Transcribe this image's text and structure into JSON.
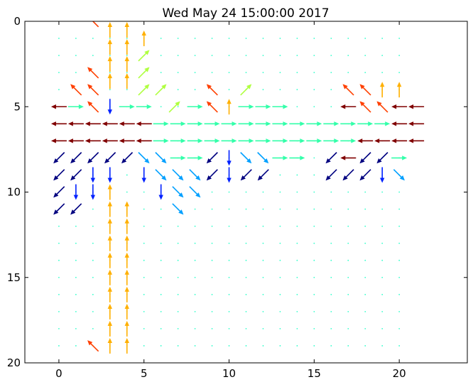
{
  "chart_data": {
    "type": "quiver",
    "title": "Wed May 24 15:00:00 2017",
    "xlabel": "",
    "ylabel": "",
    "xlim": [
      -2,
      24
    ],
    "ylim": [
      20,
      0
    ],
    "y_inverted": true,
    "xticks": [
      0,
      5,
      10,
      15,
      20
    ],
    "yticks": [
      0,
      5,
      10,
      15,
      20
    ],
    "grid": false,
    "colormap": "jet",
    "grid_points": {
      "x_start": 0,
      "x_end": 20,
      "x_step": 1,
      "y_start": 1,
      "y_end": 19,
      "y_step": 1,
      "dot_color": "#33ffcc"
    },
    "colors": {
      "dark_red": "#800000",
      "red_orange": "#ff4000",
      "orange": "#ffb000",
      "yellow_green": "#b0ff40",
      "aquamarine": "#33ffaa",
      "sky_blue": "#00a0ff",
      "blue": "#0020ff",
      "navy": "#000080"
    },
    "vectors": [
      {
        "x": 2,
        "y": 0,
        "dx": -1,
        "dy": -1,
        "color": "red_orange"
      },
      {
        "x": 3,
        "y": 0.5,
        "dx": 0,
        "dy": -1,
        "color": "orange"
      },
      {
        "x": 3,
        "y": 1.5,
        "dx": 0,
        "dy": -1,
        "color": "orange"
      },
      {
        "x": 3,
        "y": 2.5,
        "dx": 0,
        "dy": -1,
        "color": "orange"
      },
      {
        "x": 3,
        "y": 3.5,
        "dx": 0,
        "dy": -1,
        "color": "orange"
      },
      {
        "x": 4,
        "y": 0.5,
        "dx": 0,
        "dy": -1,
        "color": "orange"
      },
      {
        "x": 4,
        "y": 1.5,
        "dx": 0,
        "dy": -1,
        "color": "orange"
      },
      {
        "x": 4,
        "y": 2.5,
        "dx": 0,
        "dy": -1,
        "color": "orange"
      },
      {
        "x": 4,
        "y": 3.5,
        "dx": 0,
        "dy": -1,
        "color": "orange"
      },
      {
        "x": 5,
        "y": 1,
        "dx": 0,
        "dy": -1,
        "color": "orange"
      },
      {
        "x": 5,
        "y": 2,
        "dx": 1,
        "dy": -1,
        "color": "yellow_green"
      },
      {
        "x": 5,
        "y": 3,
        "dx": 1,
        "dy": -1,
        "color": "yellow_green"
      },
      {
        "x": 5,
        "y": 4,
        "dx": 1,
        "dy": -1,
        "color": "yellow_green"
      },
      {
        "x": 6,
        "y": 4,
        "dx": 1,
        "dy": -1,
        "color": "yellow_green"
      },
      {
        "x": 2,
        "y": 3,
        "dx": -1,
        "dy": -1,
        "color": "red_orange"
      },
      {
        "x": 1,
        "y": 4,
        "dx": -1,
        "dy": -1,
        "color": "red_orange"
      },
      {
        "x": 2,
        "y": 4,
        "dx": -1,
        "dy": -1,
        "color": "red_orange"
      },
      {
        "x": 9,
        "y": 4,
        "dx": -1,
        "dy": -1,
        "color": "red_orange"
      },
      {
        "x": 11,
        "y": 4,
        "dx": 1,
        "dy": -1,
        "color": "yellow_green"
      },
      {
        "x": 17,
        "y": 4,
        "dx": -1,
        "dy": -1,
        "color": "red_orange"
      },
      {
        "x": 18,
        "y": 4,
        "dx": -1,
        "dy": -1,
        "color": "red_orange"
      },
      {
        "x": 19,
        "y": 4,
        "dx": 0,
        "dy": -1,
        "color": "orange"
      },
      {
        "x": 20,
        "y": 4,
        "dx": 0,
        "dy": -1,
        "color": "orange"
      },
      {
        "x": 0,
        "y": 5,
        "dx": -1,
        "dy": 0,
        "color": "dark_red"
      },
      {
        "x": 1,
        "y": 5,
        "dx": 1,
        "dy": 0,
        "color": "aquamarine"
      },
      {
        "x": 2,
        "y": 5,
        "dx": -1,
        "dy": -1,
        "color": "red_orange"
      },
      {
        "x": 3,
        "y": 5,
        "dx": 0,
        "dy": 1,
        "color": "blue"
      },
      {
        "x": 4,
        "y": 5,
        "dx": 1,
        "dy": 0,
        "color": "aquamarine"
      },
      {
        "x": 5,
        "y": 5,
        "dx": 1,
        "dy": 0,
        "color": "aquamarine"
      },
      {
        "x": 6.8,
        "y": 5,
        "dx": 1,
        "dy": -1,
        "color": "yellow_green"
      },
      {
        "x": 8,
        "y": 5,
        "dx": 1,
        "dy": 0,
        "color": "aquamarine"
      },
      {
        "x": 9,
        "y": 5,
        "dx": -1,
        "dy": -1,
        "color": "red_orange"
      },
      {
        "x": 10,
        "y": 5,
        "dx": 0,
        "dy": -1,
        "color": "orange"
      },
      {
        "x": 11,
        "y": 5,
        "dx": 1,
        "dy": 0,
        "color": "aquamarine"
      },
      {
        "x": 12,
        "y": 5,
        "dx": 1,
        "dy": 0,
        "color": "aquamarine"
      },
      {
        "x": 13,
        "y": 5,
        "dx": 1,
        "dy": 0,
        "color": "aquamarine"
      },
      {
        "x": 17,
        "y": 5,
        "dx": -1,
        "dy": 0,
        "color": "dark_red"
      },
      {
        "x": 18,
        "y": 5,
        "dx": -1,
        "dy": -1,
        "color": "red_orange"
      },
      {
        "x": 19,
        "y": 5,
        "dx": -1,
        "dy": -1,
        "color": "red_orange"
      },
      {
        "x": 20,
        "y": 5,
        "dx": -1,
        "dy": 0,
        "color": "dark_red"
      },
      {
        "x": 21,
        "y": 5,
        "dx": -1,
        "dy": 0,
        "color": "dark_red"
      },
      {
        "x": 0,
        "y": 6,
        "dx": -1,
        "dy": 0,
        "color": "dark_red"
      },
      {
        "x": 1,
        "y": 6,
        "dx": -1,
        "dy": 0,
        "color": "dark_red"
      },
      {
        "x": 2,
        "y": 6,
        "dx": -1,
        "dy": 0,
        "color": "dark_red"
      },
      {
        "x": 3,
        "y": 6,
        "dx": -1,
        "dy": 0,
        "color": "dark_red"
      },
      {
        "x": 4,
        "y": 6,
        "dx": -1,
        "dy": 0,
        "color": "dark_red"
      },
      {
        "x": 5,
        "y": 6,
        "dx": -1,
        "dy": 0,
        "color": "dark_red"
      },
      {
        "x": 6,
        "y": 6,
        "dx": 1,
        "dy": 0,
        "color": "aquamarine"
      },
      {
        "x": 7,
        "y": 6,
        "dx": 1,
        "dy": 0,
        "color": "aquamarine"
      },
      {
        "x": 8,
        "y": 6,
        "dx": 1,
        "dy": 0,
        "color": "aquamarine"
      },
      {
        "x": 9,
        "y": 6,
        "dx": 1,
        "dy": 0,
        "color": "aquamarine"
      },
      {
        "x": 10,
        "y": 6,
        "dx": 1,
        "dy": 0,
        "color": "aquamarine"
      },
      {
        "x": 11,
        "y": 6,
        "dx": 1,
        "dy": 0,
        "color": "aquamarine"
      },
      {
        "x": 12,
        "y": 6,
        "dx": 1,
        "dy": 0,
        "color": "aquamarine"
      },
      {
        "x": 13,
        "y": 6,
        "dx": 1,
        "dy": 0,
        "color": "aquamarine"
      },
      {
        "x": 14,
        "y": 6,
        "dx": 1,
        "dy": 0,
        "color": "aquamarine"
      },
      {
        "x": 15,
        "y": 6,
        "dx": 1,
        "dy": 0,
        "color": "aquamarine"
      },
      {
        "x": 16,
        "y": 6,
        "dx": 1,
        "dy": 0,
        "color": "aquamarine"
      },
      {
        "x": 17,
        "y": 6,
        "dx": 1,
        "dy": 0,
        "color": "aquamarine"
      },
      {
        "x": 18,
        "y": 6,
        "dx": 1,
        "dy": 0,
        "color": "aquamarine"
      },
      {
        "x": 19,
        "y": 6,
        "dx": 1,
        "dy": 0,
        "color": "aquamarine"
      },
      {
        "x": 20,
        "y": 6,
        "dx": -1,
        "dy": 0,
        "color": "dark_red"
      },
      {
        "x": 21,
        "y": 6,
        "dx": -1,
        "dy": 0,
        "color": "dark_red"
      },
      {
        "x": 0,
        "y": 7,
        "dx": -1,
        "dy": 0,
        "color": "dark_red"
      },
      {
        "x": 1,
        "y": 7,
        "dx": -1,
        "dy": 0,
        "color": "dark_red"
      },
      {
        "x": 2,
        "y": 7,
        "dx": -1,
        "dy": 0,
        "color": "dark_red"
      },
      {
        "x": 3,
        "y": 7,
        "dx": -1,
        "dy": 0,
        "color": "dark_red"
      },
      {
        "x": 4,
        "y": 7,
        "dx": -1,
        "dy": 0,
        "color": "dark_red"
      },
      {
        "x": 5,
        "y": 7,
        "dx": -1,
        "dy": 0,
        "color": "dark_red"
      },
      {
        "x": 6,
        "y": 7,
        "dx": 1,
        "dy": 0,
        "color": "aquamarine"
      },
      {
        "x": 7,
        "y": 7,
        "dx": 1,
        "dy": 0,
        "color": "aquamarine"
      },
      {
        "x": 8,
        "y": 7,
        "dx": 1,
        "dy": 0,
        "color": "aquamarine"
      },
      {
        "x": 9,
        "y": 7,
        "dx": 1,
        "dy": 0,
        "color": "aquamarine"
      },
      {
        "x": 10,
        "y": 7,
        "dx": 1,
        "dy": 0,
        "color": "aquamarine"
      },
      {
        "x": 11,
        "y": 7,
        "dx": 1,
        "dy": 0,
        "color": "aquamarine"
      },
      {
        "x": 12,
        "y": 7,
        "dx": 1,
        "dy": 0,
        "color": "aquamarine"
      },
      {
        "x": 13,
        "y": 7,
        "dx": 1,
        "dy": 0,
        "color": "aquamarine"
      },
      {
        "x": 14,
        "y": 7,
        "dx": 1,
        "dy": 0,
        "color": "aquamarine"
      },
      {
        "x": 15,
        "y": 7,
        "dx": 1,
        "dy": 0,
        "color": "aquamarine"
      },
      {
        "x": 16,
        "y": 7,
        "dx": 1,
        "dy": 0,
        "color": "aquamarine"
      },
      {
        "x": 17,
        "y": 7,
        "dx": 1,
        "dy": 0,
        "color": "aquamarine"
      },
      {
        "x": 18,
        "y": 7,
        "dx": -1,
        "dy": 0,
        "color": "dark_red"
      },
      {
        "x": 19,
        "y": 7,
        "dx": -1,
        "dy": 0,
        "color": "dark_red"
      },
      {
        "x": 20,
        "y": 7,
        "dx": -1,
        "dy": 0,
        "color": "dark_red"
      },
      {
        "x": 21,
        "y": 7,
        "dx": -1,
        "dy": 0,
        "color": "dark_red"
      },
      {
        "x": 0,
        "y": 8,
        "dx": -1,
        "dy": 1,
        "color": "navy"
      },
      {
        "x": 1,
        "y": 8,
        "dx": -1,
        "dy": 1,
        "color": "navy"
      },
      {
        "x": 2,
        "y": 8,
        "dx": -1,
        "dy": 1,
        "color": "navy"
      },
      {
        "x": 3,
        "y": 8,
        "dx": -1,
        "dy": 1,
        "color": "navy"
      },
      {
        "x": 4,
        "y": 8,
        "dx": -1,
        "dy": 1,
        "color": "navy"
      },
      {
        "x": 5,
        "y": 8,
        "dx": 1,
        "dy": 1,
        "color": "sky_blue"
      },
      {
        "x": 6,
        "y": 8,
        "dx": 1,
        "dy": 1,
        "color": "sky_blue"
      },
      {
        "x": 7,
        "y": 8,
        "dx": 1,
        "dy": 0,
        "color": "aquamarine"
      },
      {
        "x": 8,
        "y": 8,
        "dx": 1,
        "dy": 0,
        "color": "aquamarine"
      },
      {
        "x": 9,
        "y": 8,
        "dx": -1,
        "dy": 1,
        "color": "navy"
      },
      {
        "x": 10,
        "y": 8,
        "dx": 0,
        "dy": 1,
        "color": "blue"
      },
      {
        "x": 11,
        "y": 8,
        "dx": 1,
        "dy": 1,
        "color": "sky_blue"
      },
      {
        "x": 12,
        "y": 8,
        "dx": 1,
        "dy": 1,
        "color": "sky_blue"
      },
      {
        "x": 13,
        "y": 8,
        "dx": 1,
        "dy": 0,
        "color": "aquamarine"
      },
      {
        "x": 14,
        "y": 8,
        "dx": 1,
        "dy": 0,
        "color": "aquamarine"
      },
      {
        "x": 16,
        "y": 8,
        "dx": -1,
        "dy": 1,
        "color": "navy"
      },
      {
        "x": 17,
        "y": 8,
        "dx": -1,
        "dy": 0,
        "color": "dark_red"
      },
      {
        "x": 18,
        "y": 8,
        "dx": -1,
        "dy": 1,
        "color": "navy"
      },
      {
        "x": 19,
        "y": 8,
        "dx": -1,
        "dy": 1,
        "color": "navy"
      },
      {
        "x": 20,
        "y": 8,
        "dx": 1,
        "dy": 0,
        "color": "aquamarine"
      },
      {
        "x": 0,
        "y": 9,
        "dx": -1,
        "dy": 1,
        "color": "navy"
      },
      {
        "x": 1,
        "y": 9,
        "dx": -1,
        "dy": 1,
        "color": "navy"
      },
      {
        "x": 2,
        "y": 9,
        "dx": 0,
        "dy": 1,
        "color": "blue"
      },
      {
        "x": 3,
        "y": 9,
        "dx": 0,
        "dy": 1,
        "color": "blue"
      },
      {
        "x": 5,
        "y": 9,
        "dx": 0,
        "dy": 1,
        "color": "blue"
      },
      {
        "x": 6,
        "y": 9,
        "dx": 1,
        "dy": 1,
        "color": "sky_blue"
      },
      {
        "x": 7,
        "y": 9,
        "dx": 1,
        "dy": 1,
        "color": "sky_blue"
      },
      {
        "x": 8,
        "y": 9,
        "dx": 1,
        "dy": 1,
        "color": "sky_blue"
      },
      {
        "x": 9,
        "y": 9,
        "dx": -1,
        "dy": 1,
        "color": "navy"
      },
      {
        "x": 10,
        "y": 9,
        "dx": 0,
        "dy": 1,
        "color": "blue"
      },
      {
        "x": 11,
        "y": 9,
        "dx": -1,
        "dy": 1,
        "color": "navy"
      },
      {
        "x": 12,
        "y": 9,
        "dx": -1,
        "dy": 1,
        "color": "navy"
      },
      {
        "x": 16,
        "y": 9,
        "dx": -1,
        "dy": 1,
        "color": "navy"
      },
      {
        "x": 17,
        "y": 9,
        "dx": -1,
        "dy": 1,
        "color": "navy"
      },
      {
        "x": 18,
        "y": 9,
        "dx": -1,
        "dy": 1,
        "color": "navy"
      },
      {
        "x": 19,
        "y": 9,
        "dx": 0,
        "dy": 1,
        "color": "blue"
      },
      {
        "x": 20,
        "y": 9,
        "dx": 1,
        "dy": 1,
        "color": "sky_blue"
      },
      {
        "x": 0,
        "y": 10,
        "dx": -1,
        "dy": 1,
        "color": "navy"
      },
      {
        "x": 1,
        "y": 10,
        "dx": 0,
        "dy": 1,
        "color": "blue"
      },
      {
        "x": 2,
        "y": 10,
        "dx": 0,
        "dy": 1,
        "color": "blue"
      },
      {
        "x": 6,
        "y": 10,
        "dx": 0,
        "dy": 1,
        "color": "blue"
      },
      {
        "x": 7,
        "y": 10,
        "dx": 1,
        "dy": 1,
        "color": "sky_blue"
      },
      {
        "x": 8,
        "y": 10,
        "dx": 1,
        "dy": 1,
        "color": "sky_blue"
      },
      {
        "x": 0,
        "y": 11,
        "dx": -1,
        "dy": 1,
        "color": "navy"
      },
      {
        "x": 1,
        "y": 11,
        "dx": -1,
        "dy": 1,
        "color": "navy"
      },
      {
        "x": 7,
        "y": 11,
        "dx": 1,
        "dy": 1,
        "color": "sky_blue"
      },
      {
        "x": 3,
        "y": 10,
        "dx": 0,
        "dy": -1,
        "color": "orange"
      },
      {
        "x": 3,
        "y": 11,
        "dx": 0,
        "dy": -1,
        "color": "orange"
      },
      {
        "x": 3,
        "y": 12,
        "dx": 0,
        "dy": -1,
        "color": "orange"
      },
      {
        "x": 3,
        "y": 13,
        "dx": 0,
        "dy": -1,
        "color": "orange"
      },
      {
        "x": 3,
        "y": 14,
        "dx": 0,
        "dy": -1,
        "color": "orange"
      },
      {
        "x": 3,
        "y": 15,
        "dx": 0,
        "dy": -1,
        "color": "orange"
      },
      {
        "x": 3,
        "y": 16,
        "dx": 0,
        "dy": -1,
        "color": "orange"
      },
      {
        "x": 3,
        "y": 17,
        "dx": 0,
        "dy": -1,
        "color": "orange"
      },
      {
        "x": 3,
        "y": 18,
        "dx": 0,
        "dy": -1,
        "color": "orange"
      },
      {
        "x": 3,
        "y": 19,
        "dx": 0,
        "dy": -1,
        "color": "orange"
      },
      {
        "x": 4,
        "y": 11,
        "dx": 0,
        "dy": -1,
        "color": "orange"
      },
      {
        "x": 4,
        "y": 12,
        "dx": 0,
        "dy": -1,
        "color": "orange"
      },
      {
        "x": 4,
        "y": 13,
        "dx": 0,
        "dy": -1,
        "color": "orange"
      },
      {
        "x": 4,
        "y": 14,
        "dx": 0,
        "dy": -1,
        "color": "orange"
      },
      {
        "x": 4,
        "y": 15,
        "dx": 0,
        "dy": -1,
        "color": "orange"
      },
      {
        "x": 4,
        "y": 16,
        "dx": 0,
        "dy": -1,
        "color": "orange"
      },
      {
        "x": 4,
        "y": 17,
        "dx": 0,
        "dy": -1,
        "color": "orange"
      },
      {
        "x": 4,
        "y": 18,
        "dx": 0,
        "dy": -1,
        "color": "orange"
      },
      {
        "x": 4,
        "y": 19,
        "dx": 0,
        "dy": -1,
        "color": "orange"
      },
      {
        "x": 2,
        "y": 19,
        "dx": -1,
        "dy": -1,
        "color": "red_orange"
      }
    ]
  }
}
